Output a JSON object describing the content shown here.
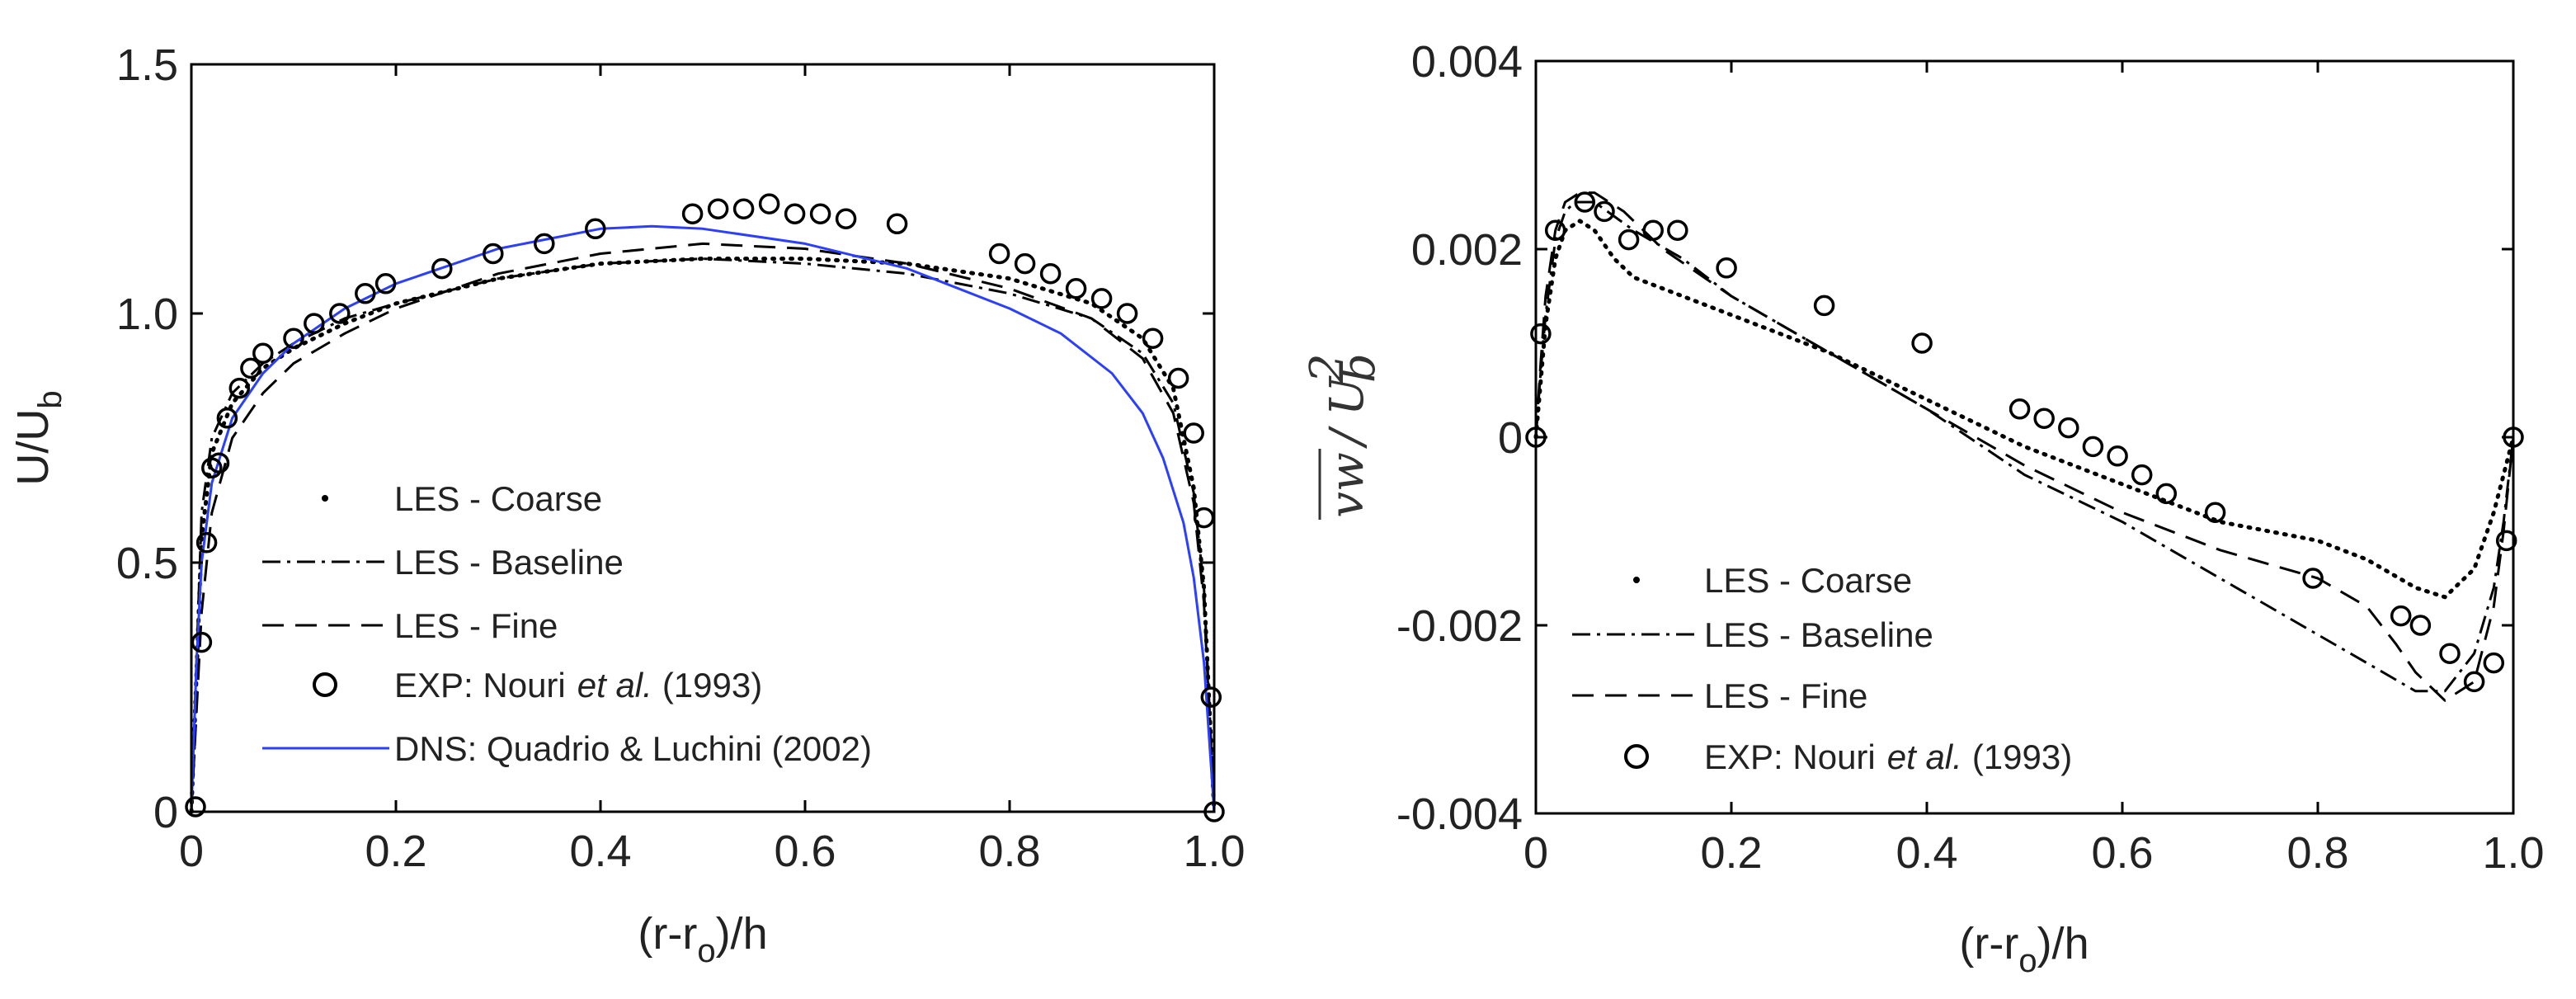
{
  "chart_data": [
    {
      "type": "line",
      "xlabel": "(r-r",
      "xlabel_sub": "o",
      "xlabel_tail": ")/h",
      "ylabel": "U/U",
      "ylabel_sub": "b",
      "xlim": [
        0,
        1
      ],
      "ylim": [
        0,
        1.5
      ],
      "xticks": [
        0,
        0.2,
        0.4,
        0.6,
        0.8,
        1.0
      ],
      "xtick_labels": [
        "0",
        "0.2",
        "0.4",
        "0.6",
        "0.8",
        "1.0"
      ],
      "yticks": [
        0,
        0.5,
        1.0,
        1.5
      ],
      "ytick_labels": [
        "0",
        "0.5",
        "1.0",
        "1.5"
      ],
      "legend_position": "bottom-left",
      "series": [
        {
          "name": "LES - Coarse",
          "style": "dotted",
          "color": "#000000",
          "x": [
            0,
            0.01,
            0.02,
            0.04,
            0.07,
            0.1,
            0.15,
            0.2,
            0.3,
            0.4,
            0.5,
            0.6,
            0.7,
            0.8,
            0.88,
            0.93,
            0.96,
            0.98,
            0.99,
            1.0
          ],
          "y": [
            0,
            0.55,
            0.72,
            0.82,
            0.89,
            0.93,
            0.98,
            1.02,
            1.07,
            1.1,
            1.11,
            1.11,
            1.1,
            1.07,
            1.02,
            0.95,
            0.85,
            0.65,
            0.45,
            0
          ]
        },
        {
          "name": "LES - Baseline",
          "style": "dashdot",
          "color": "#000000",
          "x": [
            0,
            0.01,
            0.02,
            0.04,
            0.07,
            0.1,
            0.15,
            0.2,
            0.3,
            0.4,
            0.5,
            0.6,
            0.7,
            0.8,
            0.88,
            0.93,
            0.96,
            0.98,
            0.99,
            1.0
          ],
          "y": [
            0,
            0.6,
            0.75,
            0.84,
            0.9,
            0.94,
            0.99,
            1.02,
            1.07,
            1.1,
            1.11,
            1.1,
            1.08,
            1.04,
            0.99,
            0.92,
            0.82,
            0.64,
            0.45,
            0
          ]
        },
        {
          "name": "LES - Fine",
          "style": "dashed",
          "color": "#000000",
          "x": [
            0,
            0.01,
            0.02,
            0.04,
            0.07,
            0.1,
            0.15,
            0.2,
            0.3,
            0.4,
            0.5,
            0.6,
            0.7,
            0.8,
            0.88,
            0.93,
            0.96,
            0.98,
            0.99,
            1.0
          ],
          "y": [
            0,
            0.4,
            0.6,
            0.75,
            0.84,
            0.9,
            0.96,
            1.01,
            1.08,
            1.12,
            1.14,
            1.13,
            1.1,
            1.05,
            0.99,
            0.91,
            0.8,
            0.62,
            0.42,
            0
          ]
        },
        {
          "name": "EXP: Nouri",
          "name_italic": "et al.",
          "name_tail": "(1993)",
          "style": "markers",
          "color": "#000000",
          "x": [
            0.01,
            0.015,
            0.02,
            0.027,
            0.035,
            0.047,
            0.058,
            0.07,
            0.1,
            0.12,
            0.145,
            0.17,
            0.19,
            0.245,
            0.295,
            0.345,
            0.395,
            0.49,
            0.515,
            0.54,
            0.565,
            0.59,
            0.615,
            0.64,
            0.69,
            0.79,
            0.815,
            0.84,
            0.865,
            0.89,
            0.915,
            0.94,
            0.965,
            0.98,
            0.99,
            0.997,
            1.0,
            0.004
          ],
          "y": [
            0.34,
            0.54,
            0.69,
            0.7,
            0.79,
            0.85,
            0.89,
            0.92,
            0.95,
            0.98,
            1.0,
            1.04,
            1.06,
            1.09,
            1.12,
            1.14,
            1.17,
            1.2,
            1.21,
            1.21,
            1.22,
            1.2,
            1.2,
            1.19,
            1.18,
            1.12,
            1.1,
            1.08,
            1.05,
            1.03,
            1.0,
            0.95,
            0.87,
            0.76,
            0.59,
            0.23,
            0.0,
            0.01
          ]
        },
        {
          "name": "DNS: Quadrio & Luchini (2002)",
          "style": "solid",
          "color": "#2b3fff",
          "x": [
            0,
            0.005,
            0.01,
            0.02,
            0.04,
            0.07,
            0.1,
            0.15,
            0.2,
            0.3,
            0.4,
            0.45,
            0.5,
            0.6,
            0.7,
            0.8,
            0.85,
            0.9,
            0.93,
            0.95,
            0.97,
            0.98,
            0.99,
            1.0
          ],
          "y": [
            0,
            0.3,
            0.5,
            0.66,
            0.79,
            0.88,
            0.94,
            1.01,
            1.06,
            1.13,
            1.17,
            1.175,
            1.17,
            1.14,
            1.09,
            1.01,
            0.96,
            0.88,
            0.8,
            0.71,
            0.58,
            0.47,
            0.3,
            0
          ]
        }
      ]
    },
    {
      "type": "line",
      "xlabel": "(r-r",
      "xlabel_sub": "o",
      "xlabel_tail": ")/h",
      "ylabel": "vw",
      "ylabel_den": "U",
      "ylabel_den_sub": "b",
      "ylabel_den_sup": "2",
      "xlim": [
        0,
        1
      ],
      "ylim": [
        -0.004,
        0.004
      ],
      "xticks": [
        0,
        0.2,
        0.4,
        0.6,
        0.8,
        1.0
      ],
      "xtick_labels": [
        "0",
        "0.2",
        "0.4",
        "0.6",
        "0.8",
        "1.0"
      ],
      "yticks": [
        -0.004,
        -0.002,
        0,
        0.002,
        0.004
      ],
      "ytick_labels": [
        "-0.004",
        "-0.002",
        "0",
        "0.002",
        "0.004"
      ],
      "legend_position": "bottom-left",
      "series": [
        {
          "name": "LES - Coarse",
          "style": "dotted",
          "color": "#000000",
          "x": [
            0,
            0.005,
            0.01,
            0.02,
            0.03,
            0.045,
            0.06,
            0.08,
            0.1,
            0.15,
            0.2,
            0.3,
            0.4,
            0.5,
            0.6,
            0.7,
            0.8,
            0.85,
            0.9,
            0.93,
            0.96,
            0.98,
            0.99,
            1.0
          ],
          "y": [
            0,
            0.0006,
            0.0012,
            0.0019,
            0.0022,
            0.0023,
            0.0022,
            0.0019,
            0.0017,
            0.0015,
            0.0013,
            0.0009,
            0.0004,
            -0.0001,
            -0.0005,
            -0.0009,
            -0.0011,
            -0.0013,
            -0.0016,
            -0.0017,
            -0.0014,
            -0.0008,
            -0.0004,
            0
          ]
        },
        {
          "name": "LES - Baseline",
          "style": "dashdot",
          "color": "#000000",
          "x": [
            0,
            0.005,
            0.01,
            0.02,
            0.03,
            0.04,
            0.06,
            0.1,
            0.15,
            0.2,
            0.3,
            0.4,
            0.5,
            0.6,
            0.7,
            0.8,
            0.85,
            0.9,
            0.93,
            0.96,
            0.98,
            0.99,
            1.0
          ],
          "y": [
            0,
            0.0007,
            0.0013,
            0.0021,
            0.0024,
            0.0025,
            0.0025,
            0.0022,
            0.0019,
            0.0015,
            0.0009,
            0.0003,
            -0.0004,
            -0.0009,
            -0.0015,
            -0.0021,
            -0.0024,
            -0.0027,
            -0.0027,
            -0.0023,
            -0.0016,
            -0.0009,
            0
          ]
        },
        {
          "name": "LES - Fine",
          "style": "dashed",
          "color": "#000000",
          "x": [
            0,
            0.005,
            0.01,
            0.02,
            0.03,
            0.045,
            0.06,
            0.09,
            0.13,
            0.2,
            0.3,
            0.4,
            0.5,
            0.6,
            0.7,
            0.8,
            0.85,
            0.88,
            0.9,
            0.93,
            0.96,
            0.98,
            0.99,
            1.0
          ],
          "y": [
            0,
            0.0008,
            0.0015,
            0.0022,
            0.0025,
            0.0026,
            0.0026,
            0.0024,
            0.002,
            0.0015,
            0.0009,
            0.0003,
            -0.0003,
            -0.0008,
            -0.0012,
            -0.0015,
            -0.0018,
            -0.0022,
            -0.0025,
            -0.0028,
            -0.0026,
            -0.0018,
            -0.001,
            0
          ]
        },
        {
          "name": "EXP: Nouri",
          "name_italic": "et al.",
          "name_tail": "(1993)",
          "style": "markers",
          "color": "#000000",
          "x": [
            0.0,
            0.005,
            0.02,
            0.05,
            0.07,
            0.095,
            0.12,
            0.145,
            0.195,
            0.295,
            0.395,
            0.495,
            0.52,
            0.545,
            0.57,
            0.595,
            0.62,
            0.645,
            0.695,
            0.795,
            0.885,
            0.905,
            0.935,
            0.96,
            0.98,
            0.993,
            1.0
          ],
          "y": [
            0.0,
            0.0011,
            0.0022,
            0.0025,
            0.0024,
            0.0021,
            0.0022,
            0.0022,
            0.0018,
            0.0014,
            0.001,
            0.0003,
            0.0002,
            0.0001,
            -0.0001,
            -0.0002,
            -0.0004,
            -0.0006,
            -0.0008,
            -0.0015,
            -0.0019,
            -0.002,
            -0.0023,
            -0.0026,
            -0.0024,
            -0.0011,
            0.0
          ]
        }
      ]
    }
  ]
}
